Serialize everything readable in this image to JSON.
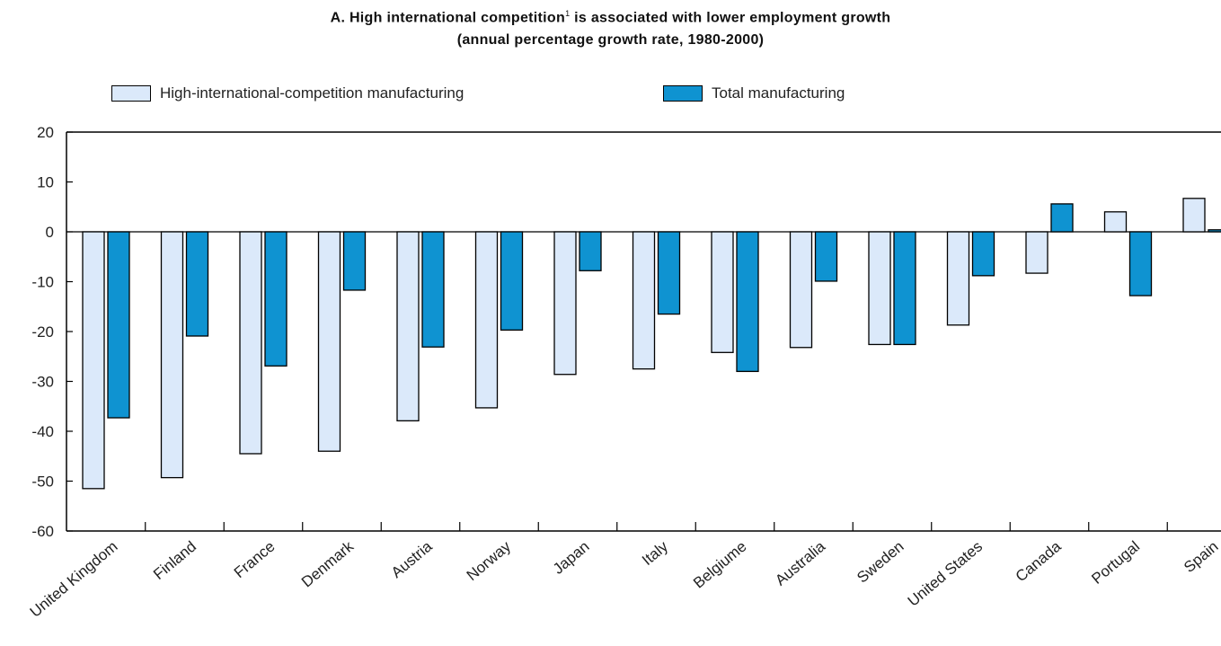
{
  "chart_data": {
    "type": "bar",
    "title_main": "A. High international competition",
    "title_footnote_marker": "1",
    "title_main_rest": " is associated with lower employment growth",
    "subtitle": "(annual percentage growth rate, 1980-2000)",
    "categories": [
      "United Kingdom",
      "Finland",
      "France",
      "Denmark",
      "Austria",
      "Norway",
      "Japan",
      "Italy",
      "Belgiume",
      "Australia",
      "Sweden",
      "United States",
      "Canada",
      "Portugal",
      "Spain"
    ],
    "series": [
      {
        "name": "High-international-competition manufacturing",
        "color": "#dbe9fa",
        "values": [
          -51.5,
          -49.3,
          -44.5,
          -44.0,
          -37.9,
          -35.3,
          -28.6,
          -27.5,
          -24.2,
          -23.2,
          -22.6,
          -18.7,
          -8.3,
          4.0,
          6.7
        ]
      },
      {
        "name": "Total manufacturing",
        "color": "#0f93d1",
        "values": [
          -37.3,
          -20.9,
          -26.9,
          -11.7,
          -23.1,
          -19.7,
          -7.8,
          -16.5,
          -28.0,
          -9.9,
          -22.6,
          -8.8,
          5.6,
          -12.8,
          0.4
        ]
      }
    ],
    "ylim": [
      -60,
      20
    ],
    "yticks": [
      "20",
      "10",
      "0",
      "-10",
      "-20",
      "-30",
      "-40",
      "-50",
      "-60"
    ],
    "xlabel": "",
    "ylabel": "",
    "grid": false,
    "legend_position": "top"
  }
}
